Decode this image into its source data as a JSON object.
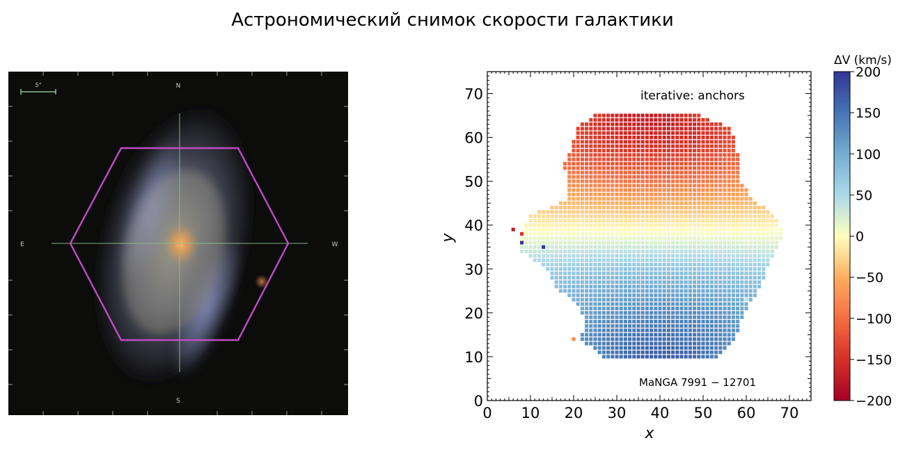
{
  "page": {
    "title": "Астрономический снимок скорости галактики"
  },
  "image_panel": {
    "scale_label": "5\"",
    "compass": {
      "north": "N",
      "south": "S",
      "east": "E",
      "west": "W"
    },
    "colors": {
      "background": "#0c0c0b",
      "hexagon": "#c04cc4",
      "crosshair": "#8cc48c",
      "scale_bar": "#8cc48c",
      "core": "#f0a050",
      "disk": "#8c96b4"
    }
  },
  "chart_data": {
    "type": "heatmap",
    "xlabel": "x",
    "ylabel": "y",
    "xlim": [
      0,
      75
    ],
    "ylim": [
      0,
      75
    ],
    "xticks": [
      0,
      10,
      20,
      30,
      40,
      50,
      60,
      70
    ],
    "yticks": [
      0,
      10,
      20,
      30,
      40,
      50,
      60,
      70
    ],
    "annotation_top": "iterative: anchors",
    "annotation_bottom": "MaNGA 7991 − 12701",
    "colorbar": {
      "label": "ΔV (km/s)",
      "range": [
        -200,
        200
      ],
      "ticks": [
        200,
        150,
        100,
        50,
        0,
        -50,
        -100,
        -150,
        -200
      ],
      "tick_labels": [
        "200",
        "150",
        "100",
        "50",
        "0",
        "−50",
        "−100",
        "−150",
        "−200"
      ],
      "colormap": "RdYlBu"
    },
    "rows": [
      {
        "y": 65,
        "x_min": 25,
        "x_max": 49,
        "v_center": -170
      },
      {
        "y": 62,
        "x_min": 21,
        "x_max": 56,
        "v_center": -165
      },
      {
        "y": 58,
        "x_min": 20,
        "x_max": 57,
        "v_center": -150
      },
      {
        "y": 54,
        "x_min": 18,
        "x_max": 58,
        "v_center": -125
      },
      {
        "y": 50,
        "x_min": 19,
        "x_max": 58,
        "v_center": -95
      },
      {
        "y": 46,
        "x_min": 19,
        "x_max": 61,
        "v_center": -60
      },
      {
        "y": 42,
        "x_min": 10,
        "x_max": 66,
        "v_center": -25
      },
      {
        "y": 38,
        "x_min": 8,
        "x_max": 68,
        "v_center": 5
      },
      {
        "y": 34,
        "x_min": 8,
        "x_max": 66,
        "v_center": 40
      },
      {
        "y": 30,
        "x_min": 14,
        "x_max": 64,
        "v_center": 75
      },
      {
        "y": 26,
        "x_min": 16,
        "x_max": 63,
        "v_center": 100
      },
      {
        "y": 22,
        "x_min": 21,
        "x_max": 60,
        "v_center": 120
      },
      {
        "y": 18,
        "x_min": 23,
        "x_max": 58,
        "v_center": 140
      },
      {
        "y": 14,
        "x_min": 22,
        "x_max": 57,
        "v_center": 155
      },
      {
        "y": 10,
        "x_min": 27,
        "x_max": 53,
        "v_center": 170
      }
    ],
    "edge_features": [
      {
        "x": 6,
        "y": 39,
        "v": -170
      },
      {
        "x": 8,
        "y": 38,
        "v": -150
      },
      {
        "x": 8,
        "y": 36,
        "v": 200
      },
      {
        "x": 13,
        "y": 35,
        "v": 200
      },
      {
        "x": 20,
        "y": 14,
        "v": -80
      },
      {
        "x": 60,
        "y": 23,
        "v": 40
      }
    ]
  }
}
